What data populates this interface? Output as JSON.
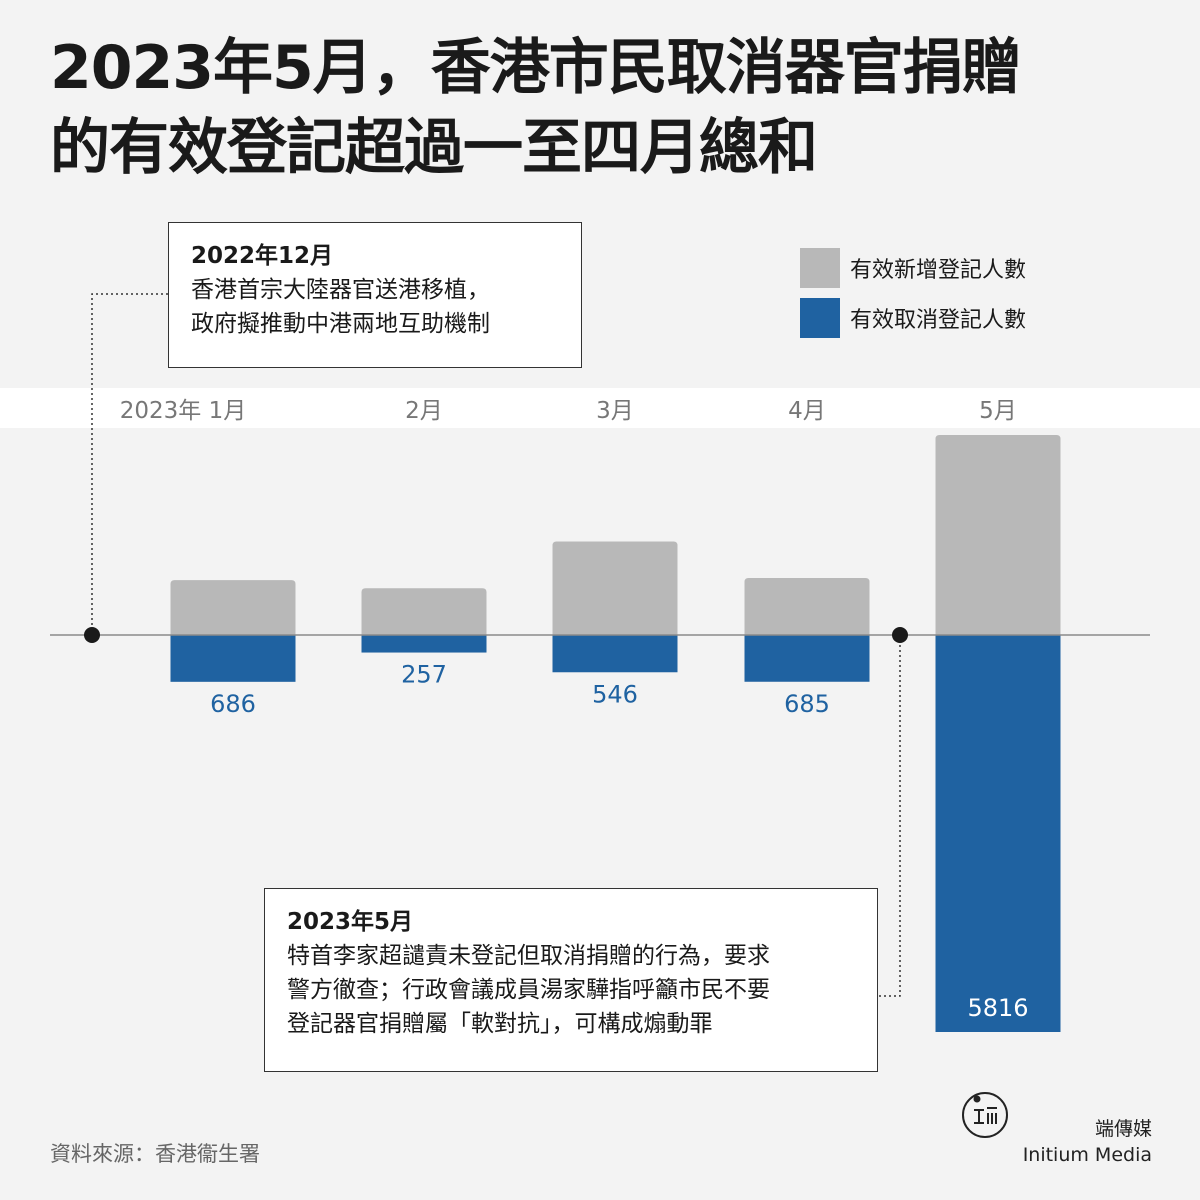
{
  "title": {
    "line1": "2023年5月，香港市民取消器官捐贈",
    "line2": "的有效登記超過一至四月總和"
  },
  "legend": {
    "new_label": "有效新增登記人數",
    "cancel_label": "有效取消登記人數"
  },
  "colors": {
    "new": "#b8b8b8",
    "cancel": "#1f62a1",
    "axis": "#888888",
    "label": "#1f62a1"
  },
  "note1": {
    "title": "2022年12月",
    "line1": "香港首宗大陸器官送港移植，",
    "line2": "政府擬推動中港兩地互助機制"
  },
  "note2": {
    "title": "2023年5月",
    "line1": "特首李家超譴責未登記但取消捐贈的行為，要求",
    "line2": "警方徹查；行政會議成員湯家驊指呼籲市民不要",
    "line3": "登記器官捐贈屬「軟對抗」，可構成煽動罪"
  },
  "source": "資料來源：香港衞生署",
  "brand": {
    "cn": "端傳媒",
    "en": "Initium Media"
  },
  "chart_data": {
    "type": "bar",
    "categories": [
      "2023年 1月",
      "2月",
      "3月",
      "4月",
      "5月"
    ],
    "series": [
      {
        "name": "有效新增登記人數",
        "values": [
          810,
          690,
          1380,
          840,
          2950
        ]
      },
      {
        "name": "有效取消登記人數",
        "values": [
          686,
          257,
          546,
          685,
          5816
        ]
      }
    ],
    "scale_max_up": 2950,
    "scale_max_down": 5816
  }
}
